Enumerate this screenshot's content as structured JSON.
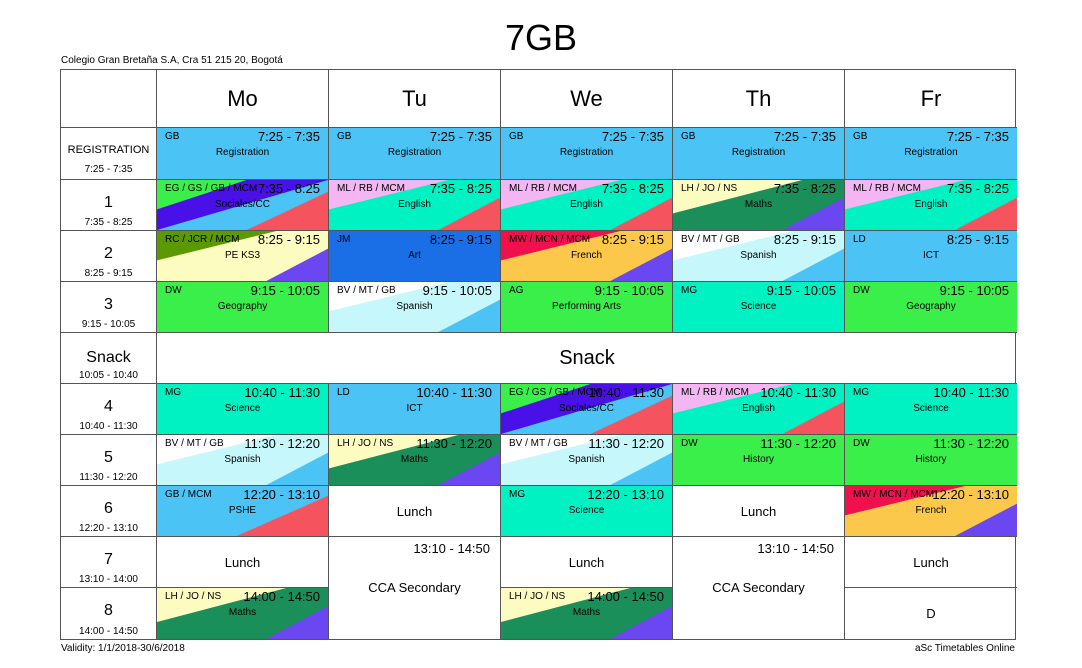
{
  "header": {
    "title": "7GB",
    "school": "Colegio Gran Bretaña S.A, Cra 51 215 20, Bogotá",
    "validity": "Validity: 1/1/2018-30/6/2018",
    "credit": "aSc Timetables Online"
  },
  "days": [
    "Mo",
    "Tu",
    "We",
    "Th",
    "Fr"
  ],
  "periods": [
    {
      "name": "REGISTRATION",
      "time": "7:25 - 7:35"
    },
    {
      "name": "1",
      "time": "7:35 - 8:25"
    },
    {
      "name": "2",
      "time": "8:25 - 9:15"
    },
    {
      "name": "3",
      "time": "9:15 - 10:05"
    },
    {
      "name": "Snack",
      "time": "10:05 - 10:40"
    },
    {
      "name": "4",
      "time": "10:40 - 11:30"
    },
    {
      "name": "5",
      "time": "11:30 - 12:20"
    },
    {
      "name": "6",
      "time": "12:20 - 13:10"
    },
    {
      "name": "7",
      "time": "13:10 - 14:00"
    },
    {
      "name": "8",
      "time": "14:00 - 14:50"
    }
  ],
  "snack_label": "Snack",
  "colors": {
    "lightblue": "#4cc3f5",
    "teal": "#00f2c3",
    "lightpink": "#f3b6f2",
    "red": "#f5545f",
    "green": "#3bef4b",
    "darkgreen": "#1a8f5a",
    "purple": "#6a47f0",
    "deeppurple": "#4a10e8",
    "paleyellow": "#fdfcc0",
    "olive": "#5a9a00",
    "blue": "#1a6ee6",
    "crimson": "#f0104e",
    "orange": "#fcc84c",
    "paleblue": "#c6f8fb"
  },
  "lessons": {
    "reg": [
      {
        "teacher": "GB",
        "time": "7:25 - 7:35",
        "subject": "Registration"
      },
      {
        "teacher": "GB",
        "time": "7:25 - 7:35",
        "subject": "Registration"
      },
      {
        "teacher": "GB",
        "time": "7:25 - 7:35",
        "subject": "Registration"
      },
      {
        "teacher": "GB",
        "time": "7:25 - 7:35",
        "subject": "Registration"
      },
      {
        "teacher": "GB",
        "time": "7:25 - 7:35",
        "subject": "Registration"
      }
    ],
    "p1": [
      {
        "teacher": "EG / GS / GB / MCM",
        "time": "7:35 - 8:25",
        "subject": "Sociales/CC"
      },
      {
        "teacher": "ML / RB / MCM",
        "time": "7:35 - 8:25",
        "subject": "English"
      },
      {
        "teacher": "ML / RB / MCM",
        "time": "7:35 - 8:25",
        "subject": "English"
      },
      {
        "teacher": "LH / JO / NS",
        "time": "7:35 - 8:25",
        "subject": "Maths"
      },
      {
        "teacher": "ML / RB / MCM",
        "time": "7:35 - 8:25",
        "subject": "English"
      }
    ],
    "p2": [
      {
        "teacher": "RC / JCR / MCM",
        "time": "8:25 - 9:15",
        "subject": "PE KS3"
      },
      {
        "teacher": "JM",
        "time": "8:25 - 9:15",
        "subject": "Art"
      },
      {
        "teacher": "MW / MCN / MCM",
        "time": "8:25 - 9:15",
        "subject": "French"
      },
      {
        "teacher": "BV / MT / GB",
        "time": "8:25 - 9:15",
        "subject": "Spanish"
      },
      {
        "teacher": "LD",
        "time": "8:25 - 9:15",
        "subject": "ICT"
      }
    ],
    "p3": [
      {
        "teacher": "DW",
        "time": "9:15 - 10:05",
        "subject": "Geography"
      },
      {
        "teacher": "BV / MT / GB",
        "time": "9:15 - 10:05",
        "subject": "Spanish"
      },
      {
        "teacher": "AG",
        "time": "9:15 - 10:05",
        "subject": "Performing Arts"
      },
      {
        "teacher": "MG",
        "time": "9:15 - 10:05",
        "subject": "Science"
      },
      {
        "teacher": "DW",
        "time": "9:15 - 10:05",
        "subject": "Geography"
      }
    ],
    "p4": [
      {
        "teacher": "MG",
        "time": "10:40 - 11:30",
        "subject": "Science"
      },
      {
        "teacher": "LD",
        "time": "10:40 - 11:30",
        "subject": "ICT"
      },
      {
        "teacher": "EG / GS / GB / MCM",
        "time": "10:40 - 11:30",
        "subject": "Sociales/CC"
      },
      {
        "teacher": "ML / RB / MCM",
        "time": "10:40 - 11:30",
        "subject": "English"
      },
      {
        "teacher": "MG",
        "time": "10:40 - 11:30",
        "subject": "Science"
      }
    ],
    "p5": [
      {
        "teacher": "BV / MT / GB",
        "time": "11:30 - 12:20",
        "subject": "Spanish"
      },
      {
        "teacher": "LH / JO / NS",
        "time": "11:30 - 12:20",
        "subject": "Maths"
      },
      {
        "teacher": "BV / MT / GB",
        "time": "11:30 - 12:20",
        "subject": "Spanish"
      },
      {
        "teacher": "DW",
        "time": "11:30 - 12:20",
        "subject": "History"
      },
      {
        "teacher": "DW",
        "time": "11:30 - 12:20",
        "subject": "History"
      }
    ],
    "p6": [
      {
        "teacher": "GB / MCM",
        "time": "12:20 - 13:10",
        "subject": "PSHE"
      },
      {
        "label": "Lunch"
      },
      {
        "teacher": "MG",
        "time": "12:20 - 13:10",
        "subject": "Science"
      },
      {
        "label": "Lunch"
      },
      {
        "teacher": "MW / MCN / MCM",
        "time": "12:20 - 13:10",
        "subject": "French"
      }
    ],
    "p7": [
      {
        "label": "Lunch"
      },
      {
        "time": "13:10 - 14:50",
        "label": "CCA Secondary"
      },
      {
        "label": "Lunch"
      },
      {
        "time": "13:10 - 14:50",
        "label": "CCA Secondary"
      },
      {
        "label": "Lunch"
      }
    ],
    "p8": [
      {
        "teacher": "LH / JO / NS",
        "time": "14:00 - 14:50",
        "subject": "Maths"
      },
      {
        "teacher": "LH / JO / NS",
        "time": "14:00 - 14:50",
        "subject": "Maths"
      },
      {
        "label": "D"
      }
    ]
  }
}
